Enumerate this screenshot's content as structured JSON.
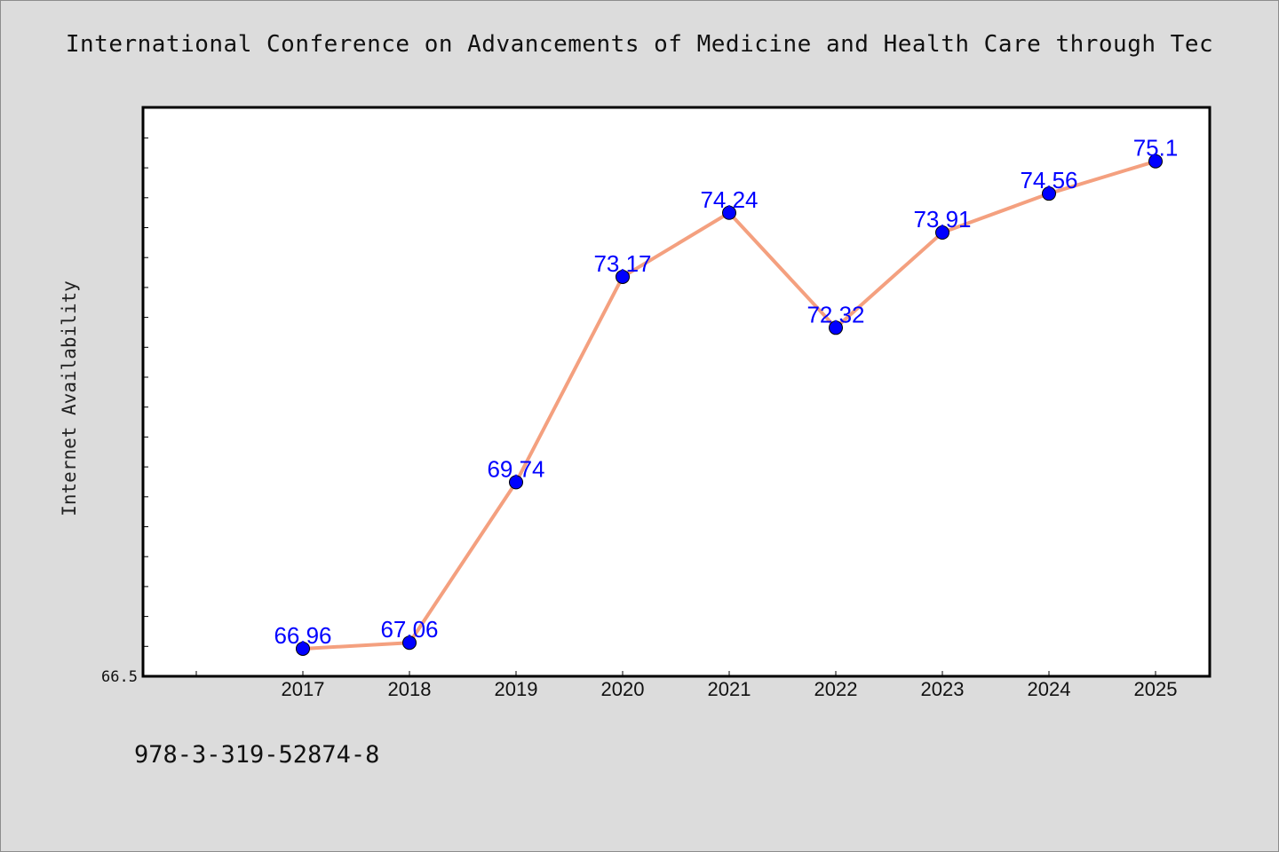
{
  "chart_data": {
    "type": "line",
    "title": "International Conference on Advancements of Medicine and Health Care through Tec",
    "xlabel": "",
    "ylabel": "Internet Availability",
    "categories": [
      "2017",
      "2018",
      "2019",
      "2020",
      "2021",
      "2022",
      "2023",
      "2024",
      "2025"
    ],
    "series": [
      {
        "values": [
          66.96,
          67.06,
          69.74,
          73.17,
          74.24,
          72.32,
          73.91,
          74.56,
          75.1
        ],
        "data_labels": [
          "66.96",
          "67.06",
          "69.74",
          "73.17",
          "74.24",
          "72.32",
          "73.91",
          "74.56",
          "75.1"
        ],
        "line_color": "#f4a07f",
        "marker_color": "#0000ff"
      }
    ],
    "ylim": [
      66.5,
      76
    ],
    "y_tick_labels": [
      "66.5"
    ],
    "grid": false,
    "legend": "none"
  },
  "footer": {
    "isbn": "978-3-319-52874-8"
  }
}
